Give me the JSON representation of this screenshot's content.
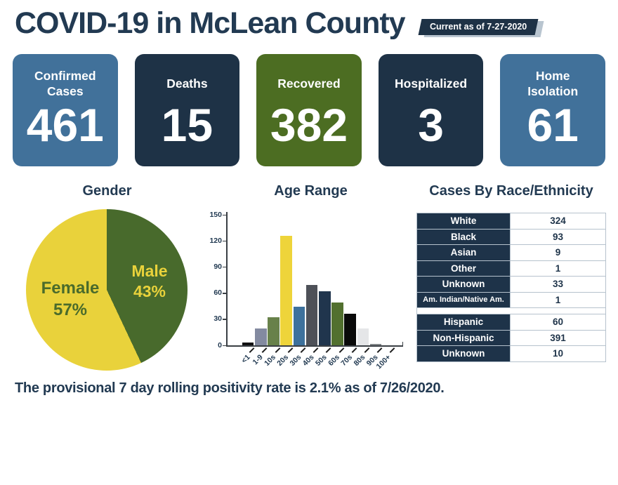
{
  "header": {
    "title": "COVID-19 in McLean County",
    "badge": "Current as of 7-27-2020"
  },
  "cards": [
    {
      "label": "Confirmed Cases",
      "value": "461",
      "color": "#41719a"
    },
    {
      "label": "Deaths",
      "value": "15",
      "color": "#1e3246"
    },
    {
      "label": "Recovered",
      "value": "382",
      "color": "#4c6d22"
    },
    {
      "label": "Hospitalized",
      "value": "3",
      "color": "#1e3246"
    },
    {
      "label": "Home Isolation",
      "value": "61",
      "color": "#41719a"
    }
  ],
  "chart_data": [
    {
      "type": "pie",
      "title": "Gender",
      "start_angle_deg": 0,
      "direction": "clockwise",
      "slices": [
        {
          "label": "Male",
          "pct": 43,
          "color": "#486a2c",
          "label_color": "#e9d23b"
        },
        {
          "label": "Female",
          "pct": 57,
          "color": "#e9d23b",
          "label_color": "#4a6b2b"
        }
      ]
    },
    {
      "type": "bar",
      "title": "Age Range",
      "categories": [
        "<1",
        "1-9",
        "10s",
        "20s",
        "30s",
        "40s",
        "50s",
        "60s",
        "70s",
        "80s",
        "90s",
        "100+"
      ],
      "values": [
        3,
        19,
        32,
        126,
        44,
        69,
        62,
        49,
        36,
        19,
        2,
        0
      ],
      "bar_colors": [
        "#111111",
        "#838aa0",
        "#68814a",
        "#eed43a",
        "#3d719c",
        "#4e5158",
        "#20354d",
        "#52702f",
        "#0a0a0a",
        "#e5e6e8",
        "#83878a",
        "#9aa0a6"
      ],
      "xlabel": "",
      "ylabel": "",
      "ylim": [
        0,
        150
      ],
      "yticks": [
        0,
        30,
        60,
        90,
        120,
        150
      ],
      "grid": false,
      "legend": "none"
    },
    {
      "type": "table",
      "title": "Cases By Race/Ethnicity",
      "groups": [
        {
          "rows": [
            [
              "White",
              "324"
            ],
            [
              "Black",
              "93"
            ],
            [
              "Asian",
              "9"
            ],
            [
              "Other",
              "1"
            ],
            [
              "Unknown",
              "33"
            ],
            [
              "Am. Indian/Native Am.",
              "1"
            ]
          ]
        },
        {
          "rows": [
            [
              "Hispanic",
              "60"
            ],
            [
              "Non-Hispanic",
              "391"
            ],
            [
              "Unknown",
              "10"
            ]
          ]
        }
      ]
    }
  ],
  "footer": {
    "text": "The provisional 7 day rolling positivity rate is 2.1% as of 7/26/2020."
  },
  "palette": {
    "navy": "#1e3246",
    "steel_blue": "#41719a",
    "olive_green": "#4c6d22",
    "pie_yellow": "#e9d23b",
    "pie_green": "#486a2c",
    "table_navy": "#1e3349",
    "table_border": "#b6c2cd",
    "title_text": "#223a52",
    "badge_shadow": "#b9c5d0"
  }
}
